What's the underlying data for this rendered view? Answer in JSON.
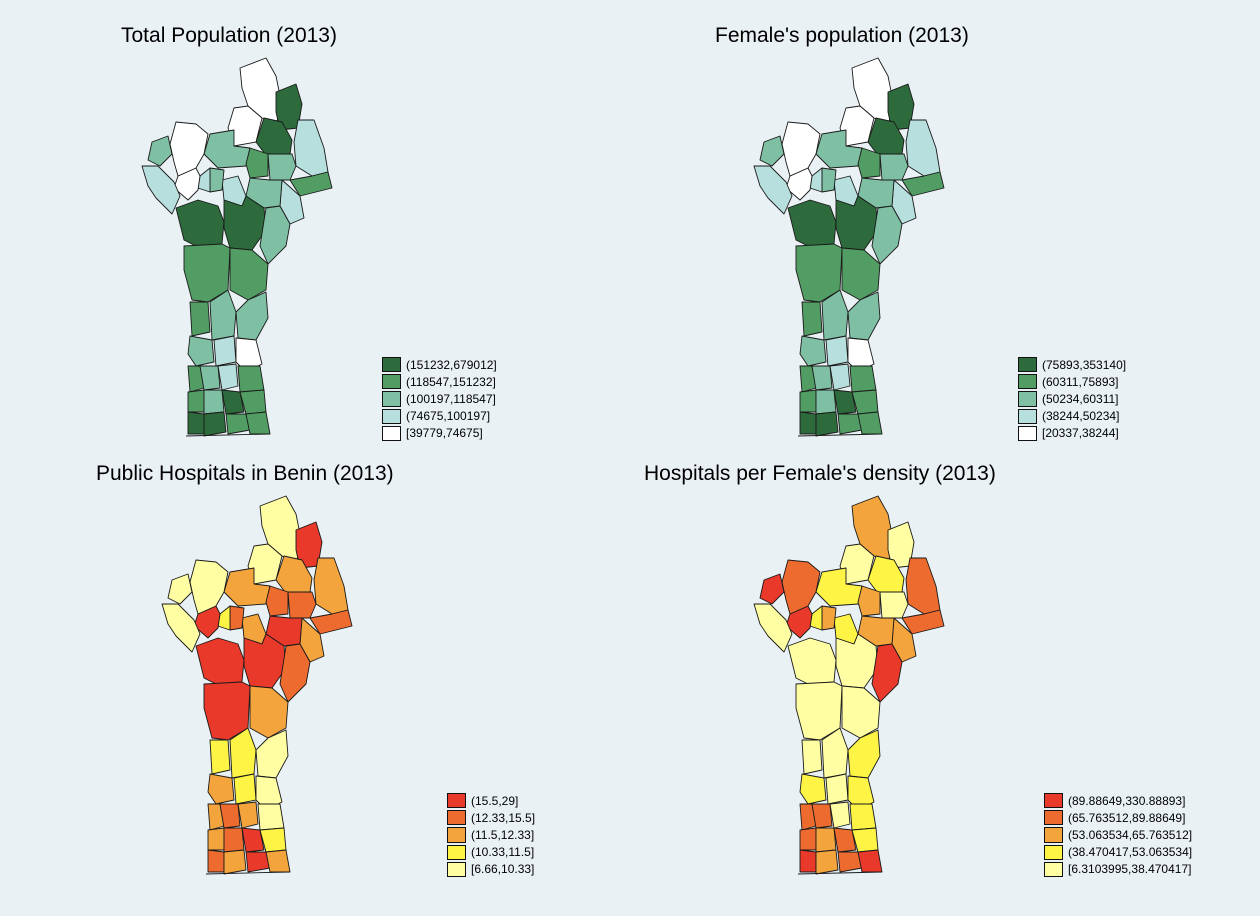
{
  "panels": [
    {
      "id": "total",
      "title": "Total Population (2013)",
      "legend": [
        {
          "label": "(151232,679012]",
          "color": "#2d6b3c"
        },
        {
          "label": "(118547,151232]",
          "color": "#519d63"
        },
        {
          "label": "(100197,118547]",
          "color": "#7fbfa4"
        },
        {
          "label": "(74675,100197]",
          "color": "#b7dfdd"
        },
        {
          "label": "[39779,74675]",
          "color": "#ffffff"
        }
      ]
    },
    {
      "id": "female",
      "title": "Female's population (2013)",
      "legend": [
        {
          "label": "(75893,353140]",
          "color": "#2d6b3c"
        },
        {
          "label": "(60311,75893]",
          "color": "#519d63"
        },
        {
          "label": "(50234,60311]",
          "color": "#7fbfa4"
        },
        {
          "label": "(38244,50234]",
          "color": "#b7dfdd"
        },
        {
          "label": "[20337,38244]",
          "color": "#ffffff"
        }
      ]
    },
    {
      "id": "hospitals",
      "title": "Public Hospitals in Benin (2013)",
      "legend": [
        {
          "label": "(15.5,29]",
          "color": "#e8392a"
        },
        {
          "label": "(12.33,15.5]",
          "color": "#ed6b2e"
        },
        {
          "label": "(11.5,12.33]",
          "color": "#f3a43c"
        },
        {
          "label": "(10.33,11.5]",
          "color": "#fef445"
        },
        {
          "label": "[6.66,10.33]",
          "color": "#fffea3"
        }
      ]
    },
    {
      "id": "density",
      "title": "Hospitals per Female's density (2013)",
      "legend": [
        {
          "label": "(89.88649,330.88893]",
          "color": "#e8392a"
        },
        {
          "label": "(65.763512,89.88649]",
          "color": "#ed6b2e"
        },
        {
          "label": "(53.063534,65.763512]",
          "color": "#f3a43c"
        },
        {
          "label": "(38.470417,53.063534]",
          "color": "#fef445"
        },
        {
          "label": "[6.3103995,38.470417]",
          "color": "#fffea3"
        }
      ]
    }
  ]
}
